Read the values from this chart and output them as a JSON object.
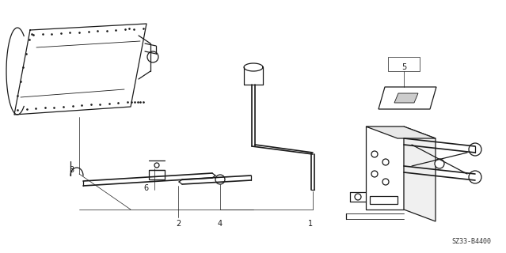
{
  "bg_color": "#ffffff",
  "line_color": "#1a1a1a",
  "reference_code": "SZ33-B4400",
  "figsize": [
    6.39,
    3.2
  ],
  "dpi": 100,
  "label_fontsize": 7,
  "ref_fontsize": 6
}
